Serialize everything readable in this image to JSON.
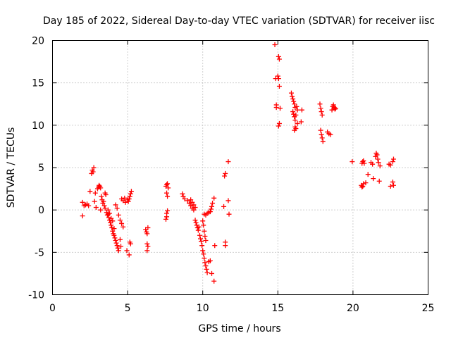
{
  "chart_data": {
    "type": "scatter",
    "title": "Day 185 of 2022, Sidereal Day-to-day VTEC variation (SDTVAR) for receiver iisc",
    "xlabel": "GPS time / hours",
    "ylabel": "SDTVAR / TECUs",
    "xlim": [
      0,
      25
    ],
    "ylim": [
      -10,
      20
    ],
    "xticks": [
      0,
      5,
      10,
      15,
      20,
      25
    ],
    "yticks": [
      -10,
      -5,
      0,
      5,
      10,
      15,
      20
    ],
    "xtick_labels": [
      "0",
      "5",
      "10",
      "15",
      "20",
      "25"
    ],
    "ytick_labels": [
      "-10",
      "-5",
      "0",
      "5",
      "10",
      "15",
      "20"
    ],
    "grid": true,
    "marker": "+",
    "series": [
      {
        "name": "SDTVAR",
        "color": "#ff0000",
        "points": [
          [
            2.0,
            -0.7
          ],
          [
            2.0,
            0.9
          ],
          [
            2.1,
            0.5
          ],
          [
            2.2,
            0.6
          ],
          [
            2.3,
            0.7
          ],
          [
            2.4,
            0.5
          ],
          [
            2.5,
            2.2
          ],
          [
            2.6,
            4.3
          ],
          [
            2.65,
            4.7
          ],
          [
            2.7,
            4.5
          ],
          [
            2.75,
            5.0
          ],
          [
            2.8,
            1.0
          ],
          [
            2.85,
            2.0
          ],
          [
            2.9,
            0.3
          ],
          [
            3.0,
            2.5
          ],
          [
            3.05,
            2.7
          ],
          [
            3.1,
            2.9
          ],
          [
            3.15,
            2.8
          ],
          [
            3.2,
            2.6
          ],
          [
            3.2,
            0.0
          ],
          [
            3.25,
            1.6
          ],
          [
            3.3,
            1.2
          ],
          [
            3.35,
            0.8
          ],
          [
            3.4,
            1.0
          ],
          [
            3.45,
            0.5
          ],
          [
            3.5,
            0.2
          ],
          [
            3.5,
            2.0
          ],
          [
            3.55,
            1.8
          ],
          [
            3.6,
            -0.3
          ],
          [
            3.65,
            -0.6
          ],
          [
            3.7,
            -0.5
          ],
          [
            3.75,
            -0.9
          ],
          [
            3.8,
            -1.2
          ],
          [
            3.85,
            -1.5
          ],
          [
            3.9,
            -1.8
          ],
          [
            3.95,
            -2.1
          ],
          [
            4.0,
            -2.5
          ],
          [
            4.05,
            -2.8
          ],
          [
            4.1,
            -3.0
          ],
          [
            4.15,
            -3.3
          ],
          [
            4.2,
            -3.6
          ],
          [
            4.25,
            -3.9
          ],
          [
            4.3,
            -4.2
          ],
          [
            4.35,
            -4.5
          ],
          [
            4.4,
            -4.8
          ],
          [
            4.5,
            -3.5
          ],
          [
            4.55,
            -4.3
          ],
          [
            3.7,
            0.0
          ],
          [
            3.8,
            -0.4
          ],
          [
            3.9,
            -1.0
          ],
          [
            4.0,
            -1.3
          ],
          [
            4.1,
            -2.2
          ],
          [
            4.2,
            0.6
          ],
          [
            4.3,
            0.2
          ],
          [
            4.4,
            -0.6
          ],
          [
            4.5,
            -1.2
          ],
          [
            4.6,
            -1.6
          ],
          [
            4.7,
            -2.0
          ],
          [
            4.6,
            1.3
          ],
          [
            4.7,
            1.1
          ],
          [
            4.8,
            1.4
          ],
          [
            4.85,
            0.9
          ],
          [
            4.95,
            -4.8
          ],
          [
            5.1,
            -5.3
          ],
          [
            5.15,
            -3.8
          ],
          [
            5.2,
            -4.0
          ],
          [
            5.05,
            1.0
          ],
          [
            5.1,
            1.3
          ],
          [
            5.15,
            1.6
          ],
          [
            5.2,
            1.9
          ],
          [
            5.25,
            2.2
          ],
          [
            5.0,
            1.2
          ],
          [
            6.2,
            -2.3
          ],
          [
            6.25,
            -2.6
          ],
          [
            6.3,
            -2.8
          ],
          [
            6.35,
            -2.1
          ],
          [
            6.3,
            -4.0
          ],
          [
            6.35,
            -4.3
          ],
          [
            6.3,
            -4.8
          ],
          [
            7.55,
            2.8
          ],
          [
            7.6,
            3.0
          ],
          [
            7.65,
            3.1
          ],
          [
            7.7,
            2.6
          ],
          [
            7.6,
            2.0
          ],
          [
            7.65,
            1.6
          ],
          [
            7.6,
            -0.4
          ],
          [
            7.65,
            -0.1
          ],
          [
            7.6,
            -0.8
          ],
          [
            7.55,
            -1.1
          ],
          [
            8.65,
            1.9
          ],
          [
            8.7,
            1.6
          ],
          [
            8.8,
            1.3
          ],
          [
            9.0,
            1.1
          ],
          [
            9.1,
            0.8
          ],
          [
            9.2,
            0.5
          ],
          [
            9.3,
            0.2
          ],
          [
            9.4,
            0.0
          ],
          [
            9.2,
            1.2
          ],
          [
            9.3,
            0.9
          ],
          [
            9.4,
            0.6
          ],
          [
            9.5,
            0.3
          ],
          [
            9.5,
            -1.2
          ],
          [
            9.55,
            -1.5
          ],
          [
            9.6,
            -1.8
          ],
          [
            9.65,
            -2.1
          ],
          [
            9.7,
            -2.4
          ],
          [
            9.75,
            -2.0
          ],
          [
            9.8,
            -3.0
          ],
          [
            9.85,
            -3.4
          ],
          [
            9.9,
            -3.7
          ],
          [
            9.95,
            -4.2
          ],
          [
            10.0,
            -4.8
          ],
          [
            10.05,
            -5.2
          ],
          [
            10.1,
            -5.7
          ],
          [
            10.15,
            -6.2
          ],
          [
            10.2,
            -6.6
          ],
          [
            10.25,
            -7.0
          ],
          [
            10.3,
            -7.4
          ],
          [
            10.4,
            -6.1
          ],
          [
            10.5,
            -6.0
          ],
          [
            10.6,
            -7.5
          ],
          [
            10.0,
            -1.3
          ],
          [
            10.05,
            -1.8
          ],
          [
            10.1,
            -2.5
          ],
          [
            10.15,
            -3.1
          ],
          [
            10.2,
            -3.6
          ],
          [
            10.1,
            -0.5
          ],
          [
            10.2,
            -0.6
          ],
          [
            10.3,
            -0.4
          ],
          [
            10.4,
            -0.3
          ],
          [
            10.5,
            -0.2
          ],
          [
            10.55,
            0.1
          ],
          [
            10.6,
            0.4
          ],
          [
            10.65,
            0.8
          ],
          [
            10.75,
            -8.4
          ],
          [
            10.75,
            1.4
          ],
          [
            10.8,
            -4.2
          ],
          [
            11.4,
            0.4
          ],
          [
            11.45,
            4.0
          ],
          [
            11.5,
            4.3
          ],
          [
            11.5,
            -3.8
          ],
          [
            11.5,
            -4.2
          ],
          [
            11.7,
            5.7
          ],
          [
            11.7,
            1.1
          ],
          [
            11.75,
            -0.5
          ],
          [
            14.8,
            19.5
          ],
          [
            14.85,
            15.5
          ],
          [
            14.9,
            12.4
          ],
          [
            14.9,
            12.1
          ],
          [
            15.0,
            15.8
          ],
          [
            15.05,
            15.5
          ],
          [
            15.05,
            18.1
          ],
          [
            15.1,
            17.8
          ],
          [
            15.1,
            14.6
          ],
          [
            15.15,
            12.0
          ],
          [
            15.05,
            9.9
          ],
          [
            15.1,
            10.2
          ],
          [
            15.9,
            13.8
          ],
          [
            15.95,
            13.4
          ],
          [
            16.0,
            13.1
          ],
          [
            16.05,
            12.8
          ],
          [
            16.1,
            12.5
          ],
          [
            16.15,
            12.1
          ],
          [
            16.0,
            11.6
          ],
          [
            16.05,
            11.3
          ],
          [
            16.1,
            11.0
          ],
          [
            16.15,
            10.6
          ],
          [
            16.2,
            11.2
          ],
          [
            16.25,
            12.2
          ],
          [
            16.3,
            11.8
          ],
          [
            16.1,
            9.4
          ],
          [
            16.15,
            9.8
          ],
          [
            16.2,
            9.6
          ],
          [
            16.3,
            10.2
          ],
          [
            16.55,
            10.4
          ],
          [
            16.6,
            11.8
          ],
          [
            17.8,
            12.5
          ],
          [
            17.85,
            12.0
          ],
          [
            17.9,
            11.6
          ],
          [
            17.95,
            11.2
          ],
          [
            17.85,
            9.4
          ],
          [
            17.9,
            8.9
          ],
          [
            17.95,
            8.5
          ],
          [
            18.0,
            8.1
          ],
          [
            18.3,
            9.2
          ],
          [
            18.4,
            9.0
          ],
          [
            18.5,
            8.9
          ],
          [
            18.6,
            11.8
          ],
          [
            18.65,
            12.2
          ],
          [
            18.7,
            12.4
          ],
          [
            18.75,
            12.1
          ],
          [
            18.8,
            11.9
          ],
          [
            18.85,
            12.0
          ],
          [
            19.95,
            5.7
          ],
          [
            20.55,
            2.9
          ],
          [
            20.6,
            2.7
          ],
          [
            20.65,
            2.8
          ],
          [
            20.7,
            3.1
          ],
          [
            20.6,
            5.5
          ],
          [
            20.65,
            5.7
          ],
          [
            20.7,
            5.8
          ],
          [
            20.75,
            5.5
          ],
          [
            20.85,
            3.2
          ],
          [
            21.0,
            4.2
          ],
          [
            21.2,
            5.6
          ],
          [
            21.3,
            5.4
          ],
          [
            21.35,
            3.7
          ],
          [
            21.5,
            6.3
          ],
          [
            21.55,
            6.7
          ],
          [
            21.6,
            6.5
          ],
          [
            21.65,
            6.0
          ],
          [
            21.7,
            5.6
          ],
          [
            21.8,
            5.2
          ],
          [
            21.75,
            3.4
          ],
          [
            22.4,
            5.4
          ],
          [
            22.5,
            5.3
          ],
          [
            22.5,
            2.8
          ],
          [
            22.65,
            3.3
          ],
          [
            22.65,
            5.7
          ],
          [
            22.7,
            6.0
          ],
          [
            22.7,
            2.9
          ]
        ]
      }
    ]
  }
}
